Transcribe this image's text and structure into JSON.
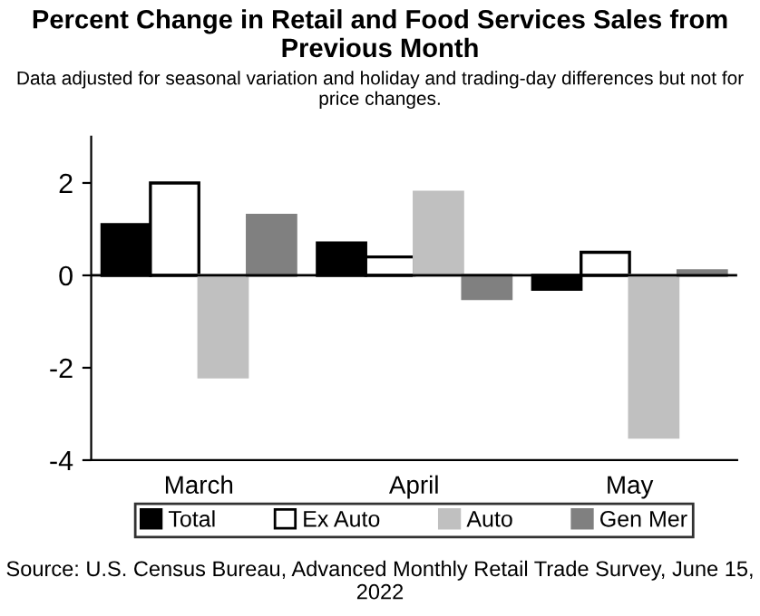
{
  "chart_data": {
    "type": "bar",
    "title": "Percent Change in Retail and Food Services Sales from Previous Month",
    "subtitle": "Data adjusted for seasonal variation and holiday and trading-day differences but not for price changes.",
    "categories": [
      "March",
      "April",
      "May"
    ],
    "series": [
      {
        "name": "Total",
        "color": "#000000",
        "values": [
          1.1,
          0.7,
          -0.3
        ]
      },
      {
        "name": "Ex Auto",
        "color": "#ffffff",
        "values": [
          2.0,
          0.4,
          0.5
        ]
      },
      {
        "name": "Auto",
        "color": "#c0c0c0",
        "values": [
          -2.2,
          1.8,
          -3.5
        ]
      },
      {
        "name": "Gen Mer",
        "color": "#808080",
        "values": [
          1.3,
          -0.5,
          0.1
        ]
      }
    ],
    "ref_lines": [
      {
        "axis": "y",
        "value": 0,
        "color": "#000000"
      }
    ],
    "ylim": [
      -4,
      3
    ],
    "yticks": [
      -4,
      -2,
      0,
      2
    ],
    "grid": false,
    "legend": "bottom",
    "annotations": [
      "Source: U.S. Census Bureau, Advanced Monthly Retail Trade Survey, June 15, 2022"
    ]
  }
}
